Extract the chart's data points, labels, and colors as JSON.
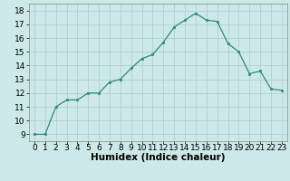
{
  "x": [
    0,
    1,
    2,
    3,
    4,
    5,
    6,
    7,
    8,
    9,
    10,
    11,
    12,
    13,
    14,
    15,
    16,
    17,
    18,
    19,
    20,
    21,
    22,
    23
  ],
  "y": [
    9,
    9,
    11,
    11.5,
    11.5,
    12,
    12,
    12.8,
    13,
    13.8,
    14.5,
    14.8,
    15.7,
    16.8,
    17.3,
    17.8,
    17.3,
    17.2,
    15.6,
    15.0,
    13.4,
    13.6,
    12.3,
    12.2
  ],
  "title": "",
  "xlabel": "Humidex (Indice chaleur)",
  "ylabel": "",
  "xlim": [
    -0.5,
    23.5
  ],
  "ylim": [
    8.5,
    18.5
  ],
  "yticks": [
    9,
    10,
    11,
    12,
    13,
    14,
    15,
    16,
    17,
    18
  ],
  "xticks": [
    0,
    1,
    2,
    3,
    4,
    5,
    6,
    7,
    8,
    9,
    10,
    11,
    12,
    13,
    14,
    15,
    16,
    17,
    18,
    19,
    20,
    21,
    22,
    23
  ],
  "line_color": "#2e8b7a",
  "marker_color": "#2e8b7a",
  "bg_color": "#cce8e8",
  "grid_color": "#aacccc",
  "xlabel_fontsize": 7.5,
  "tick_fontsize": 6.5
}
